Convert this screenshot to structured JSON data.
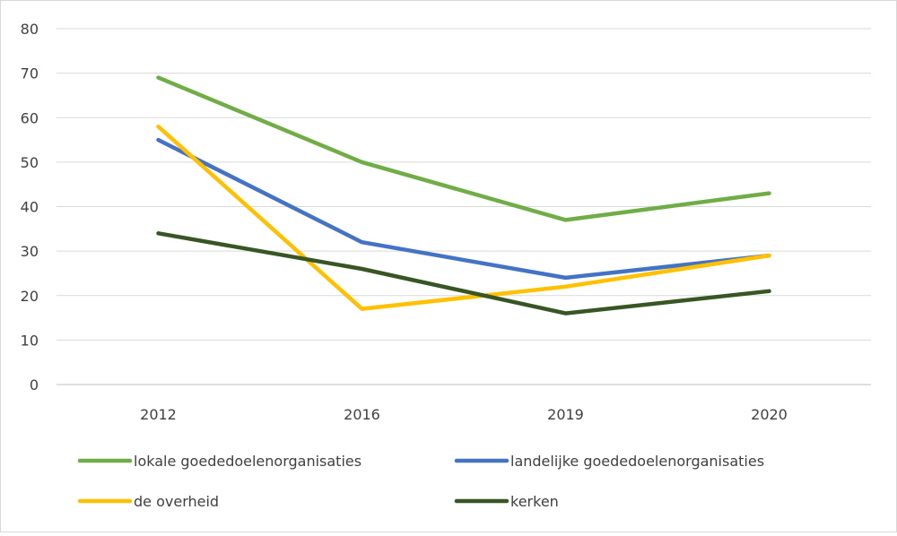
{
  "chart_data": {
    "type": "line",
    "categories": [
      "2012",
      "2016",
      "2019",
      "2020"
    ],
    "y_ticks": [
      "0",
      "10",
      "20",
      "30",
      "40",
      "50",
      "60",
      "70",
      "80"
    ],
    "ylim": [
      0,
      80
    ],
    "grid": true,
    "legend_position": "bottom",
    "series": [
      {
        "name": "lokale goededoelenorganisaties",
        "color": "#70ad47",
        "values": [
          69,
          50,
          37,
          43
        ]
      },
      {
        "name": "landelijke goededoelenorganisaties",
        "color": "#4472c4",
        "values": [
          55,
          32,
          24,
          29
        ]
      },
      {
        "name": "de overheid",
        "color": "#ffc000",
        "values": [
          58,
          17,
          22,
          29
        ]
      },
      {
        "name": "kerken",
        "color": "#375623",
        "values": [
          34,
          26,
          16,
          21
        ]
      }
    ]
  }
}
